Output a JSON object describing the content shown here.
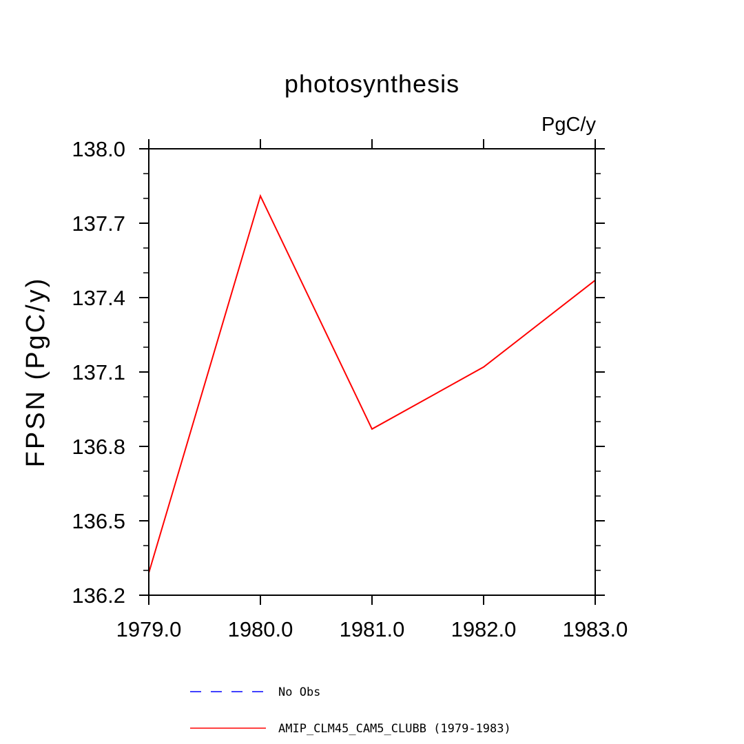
{
  "chart_data": {
    "type": "line",
    "title": "photosynthesis",
    "units_label": "PgC/y",
    "ylabel": "FPSN  (PgC/y)",
    "xlabel": "",
    "x_ticks": [
      1979.0,
      1980.0,
      1981.0,
      1982.0,
      1983.0
    ],
    "x_tick_labels": [
      "1979.0",
      "1980.0",
      "1981.0",
      "1982.0",
      "1983.0"
    ],
    "y_ticks": [
      136.2,
      136.5,
      136.8,
      137.1,
      137.4,
      137.7,
      138.0
    ],
    "y_tick_labels": [
      "136.2",
      "136.5",
      "136.8",
      "137.1",
      "137.4",
      "137.7",
      "138.0"
    ],
    "xlim": [
      1979,
      1983
    ],
    "ylim": [
      136.2,
      138.0
    ],
    "grid": false,
    "legend_position": "bottom",
    "series": [
      {
        "name": "No Obs",
        "color": "#0000ff",
        "style": "dashed",
        "x": [],
        "values": []
      },
      {
        "name": "AMIP_CLM45_CAM5_CLUBB (1979-1983)",
        "color": "#ff0000",
        "style": "solid",
        "x": [
          1979,
          1980,
          1981,
          1982,
          1983
        ],
        "values": [
          136.29,
          137.81,
          136.87,
          137.12,
          137.47
        ]
      }
    ]
  }
}
